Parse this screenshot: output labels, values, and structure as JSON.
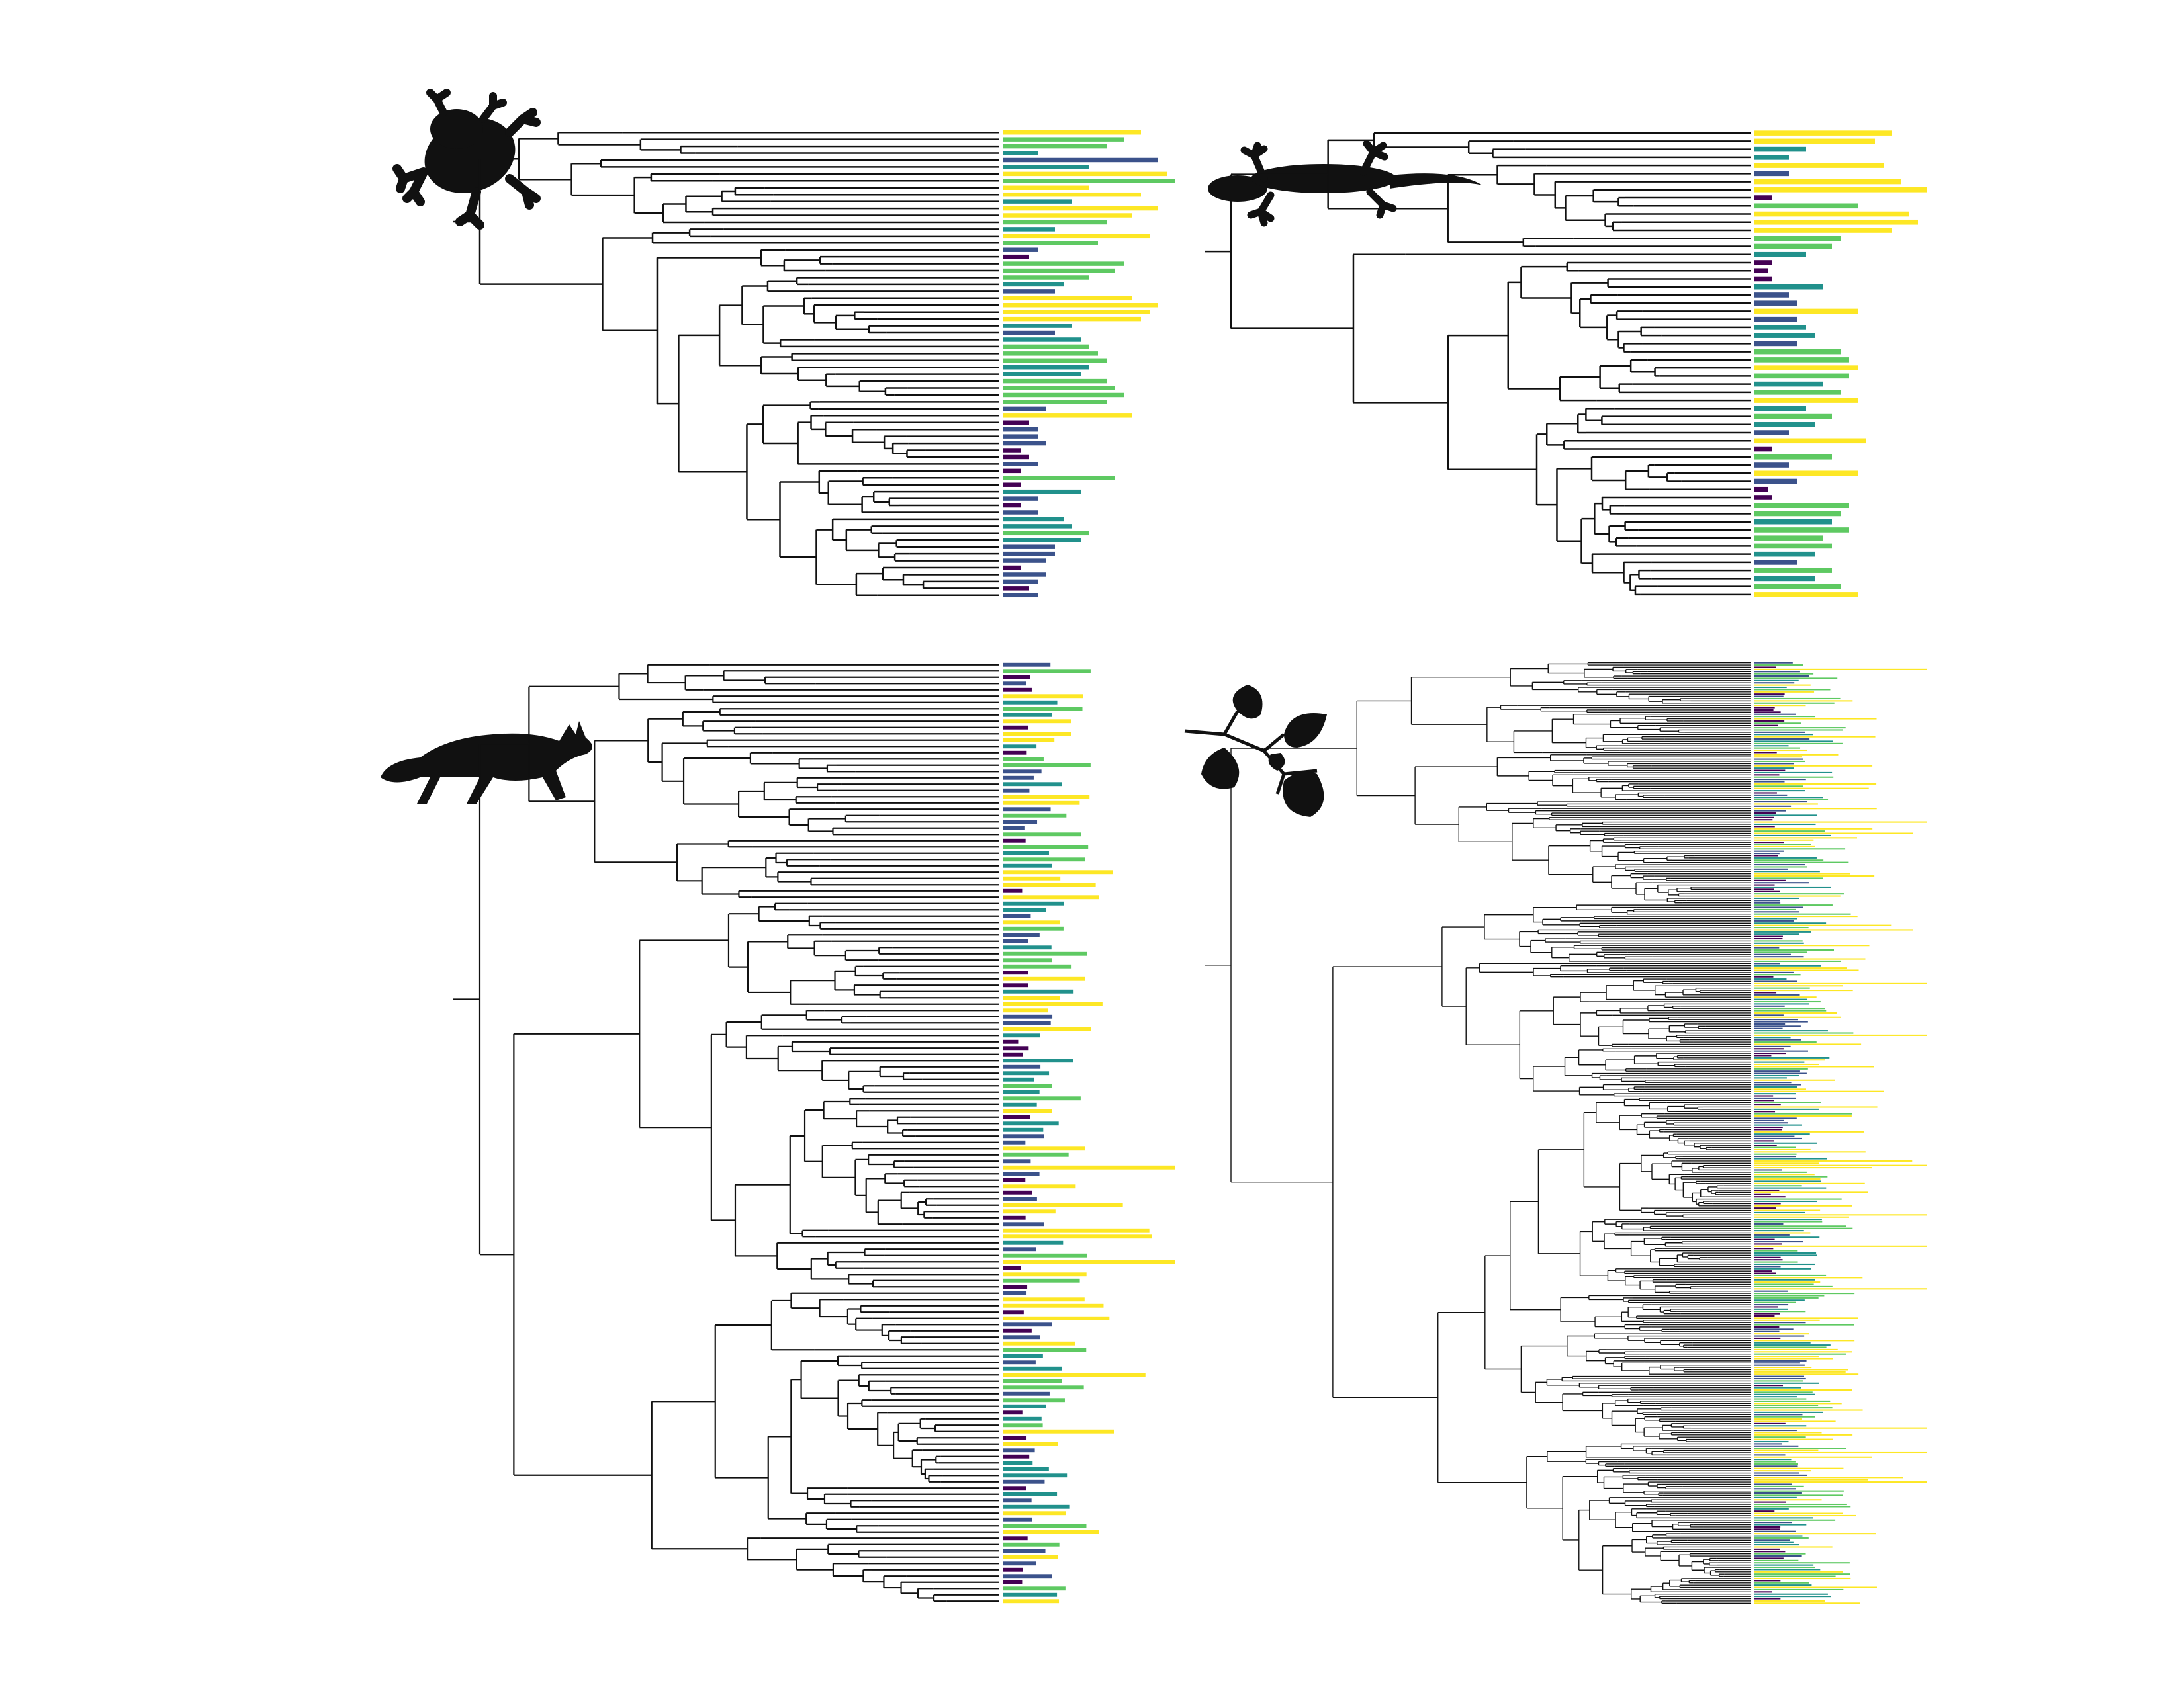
{
  "figure": {
    "palette": {
      "c1": "#440154",
      "c2": "#3b528b",
      "c3": "#21918c",
      "c4": "#5ec962",
      "c5": "#fde725",
      "branch": "#111111",
      "background": "#ffffff"
    },
    "panels": [
      {
        "id": "frog",
        "icon": "frog-icon",
        "tree_style": "sparse",
        "bar_pattern": [
          5,
          4,
          4,
          3,
          2,
          3,
          5,
          4,
          5,
          5,
          3,
          5,
          5,
          4,
          3,
          5,
          4,
          2,
          1,
          4,
          4,
          4,
          3,
          2,
          5,
          5,
          5,
          5,
          3,
          2,
          3,
          4,
          4,
          4,
          3,
          3,
          4,
          4,
          4,
          4,
          2,
          5,
          1,
          2,
          2,
          2,
          1,
          1,
          2,
          1,
          4,
          1,
          3,
          2,
          1,
          2,
          3,
          3,
          4,
          3,
          2,
          2,
          2,
          1,
          2,
          2,
          1,
          2
        ],
        "bar_lengths": [
          0.8,
          0.7,
          0.6,
          0.2,
          0.9,
          0.5,
          0.95,
          1,
          0.5,
          0.8,
          0.4,
          0.9,
          0.75,
          0.6,
          0.3,
          0.85,
          0.55,
          0.2,
          0.15,
          0.7,
          0.65,
          0.5,
          0.35,
          0.3,
          0.75,
          0.9,
          0.85,
          0.8,
          0.4,
          0.3,
          0.45,
          0.5,
          0.55,
          0.6,
          0.5,
          0.45,
          0.6,
          0.65,
          0.7,
          0.6,
          0.25,
          0.75,
          0.15,
          0.2,
          0.2,
          0.25,
          0.1,
          0.15,
          0.2,
          0.1,
          0.65,
          0.1,
          0.45,
          0.2,
          0.1,
          0.2,
          0.35,
          0.4,
          0.5,
          0.45,
          0.3,
          0.3,
          0.25,
          0.1,
          0.25,
          0.2,
          0.15,
          0.2
        ]
      },
      {
        "id": "gecko",
        "icon": "gecko-icon",
        "tree_style": "sparse",
        "bar_pattern": [
          5,
          5,
          3,
          3,
          5,
          2,
          5,
          5,
          1,
          4,
          5,
          5,
          5,
          4,
          4,
          3,
          1,
          1,
          1,
          3,
          2,
          2,
          5,
          2,
          3,
          3,
          2,
          4,
          4,
          5,
          4,
          3,
          4,
          5,
          3,
          4,
          3,
          2,
          5,
          1,
          4,
          2,
          5,
          2,
          1,
          1,
          4,
          4,
          3,
          4,
          4,
          4,
          3,
          2,
          4,
          3,
          4,
          5
        ],
        "bar_lengths": [
          0.8,
          0.7,
          0.3,
          0.2,
          0.75,
          0.2,
          0.85,
          1,
          0.1,
          0.6,
          0.9,
          0.95,
          0.8,
          0.5,
          0.45,
          0.3,
          0.1,
          0.08,
          0.1,
          0.4,
          0.2,
          0.25,
          0.6,
          0.25,
          0.3,
          0.35,
          0.25,
          0.5,
          0.55,
          0.6,
          0.55,
          0.4,
          0.5,
          0.6,
          0.3,
          0.45,
          0.35,
          0.2,
          0.65,
          0.1,
          0.45,
          0.2,
          0.6,
          0.25,
          0.08,
          0.1,
          0.55,
          0.5,
          0.45,
          0.55,
          0.4,
          0.45,
          0.35,
          0.25,
          0.45,
          0.35,
          0.5,
          0.6
        ]
      },
      {
        "id": "fox",
        "icon": "fox-icon",
        "tree_style": "medium",
        "bar_seed": 7,
        "bar_max": 0.9
      },
      {
        "id": "birch",
        "icon": "birch-leaves-icon",
        "tree_style": "dense",
        "bar_seed": 13,
        "bar_max": 1.0
      }
    ]
  }
}
